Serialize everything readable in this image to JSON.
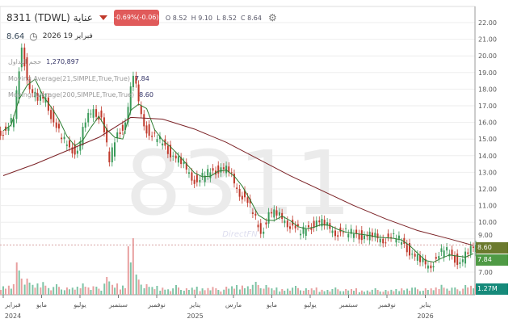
{
  "header": {
    "symbol": "8311 (TDWL) عناية",
    "change": "-0.69%(-0.06)",
    "ohlc": {
      "o_label": "O",
      "o": "8.52",
      "h_label": "H",
      "h": "9.10",
      "l_label": "L",
      "l": "8.52",
      "c_label": "C",
      "c": "8.64"
    },
    "last": "8.64",
    "date": "فبراير 19 2026"
  },
  "indicators": {
    "volume_label": "حجم التداول",
    "volume": "1,270,897",
    "ma1_label": "Moving Average(21,SIMPLE,True,True)",
    "ma1": "7.84",
    "ma2_label": "Moving Average(200,SIMPLE,True,True)",
    "ma2": "8.60"
  },
  "watermark": "8311",
  "brand": "DirectFN",
  "axis_tags": {
    "ma2": "8.60",
    "ma1": "7.84",
    "volume": "1.27M"
  },
  "colors": {
    "up": "#3a9a5a",
    "down": "#c0392b",
    "ma1": "#2e7d32",
    "ma2": "#7b2226",
    "vol_up": "#7fc4a6",
    "vol_down": "#e8a0a0"
  },
  "chart_data": {
    "type": "candlestick",
    "ylim": [
      6.5,
      22.5
    ],
    "yticks": [
      "22.00",
      "21.00",
      "20.00",
      "19.00",
      "18.00",
      "17.00",
      "16.00",
      "15.00",
      "14.00",
      "13.00",
      "12.00",
      "11.00",
      "10.00",
      "9.00",
      "7.00"
    ],
    "xticks": [
      [
        "فبراير",
        "2024"
      ],
      [
        "مايو",
        ""
      ],
      [
        "يوليو",
        ""
      ],
      [
        "سبتمبر",
        ""
      ],
      [
        "نوفمبر",
        ""
      ],
      [
        "يناير",
        "2025"
      ],
      [
        "مارس",
        ""
      ],
      [
        "مايو",
        ""
      ],
      [
        "يوليو",
        ""
      ],
      [
        "سبتمبر",
        ""
      ],
      [
        "نوفمبر",
        ""
      ],
      [
        "يناير",
        "2026"
      ]
    ],
    "close": [
      15.5,
      16.2,
      20.5,
      18,
      17.3,
      17.5,
      16,
      15,
      14.5,
      14.3,
      16,
      16.8,
      16.3,
      13.6,
      15.4,
      16,
      18.8,
      16.5,
      15.2,
      15,
      14.6,
      14,
      13.5,
      13,
      12.4,
      12.8,
      13.1,
      13.3,
      13,
      12,
      11.5,
      10.5,
      9.3,
      10.6,
      10.4,
      10.1,
      9.8,
      9.3,
      9.7,
      10.1,
      9.8,
      9.5,
      9.4,
      9.3,
      9.3,
      9.2,
      9.1,
      9.0,
      9.1,
      9.0,
      8.7,
      8.1,
      7.6,
      7.4,
      7.8,
      8.3,
      8.0,
      7.6,
      8.1,
      8.64
    ],
    "ma200_points": [
      [
        0,
        12.8
      ],
      [
        4,
        13.5
      ],
      [
        8,
        14.3
      ],
      [
        12,
        15.1
      ],
      [
        16,
        16.3
      ],
      [
        20,
        16.2
      ],
      [
        24,
        15.6
      ],
      [
        28,
        14.8
      ],
      [
        32,
        13.8
      ],
      [
        36,
        12.8
      ],
      [
        40,
        11.9
      ],
      [
        44,
        11
      ],
      [
        48,
        10.2
      ],
      [
        52,
        9.5
      ],
      [
        56,
        9.0
      ],
      [
        59,
        8.6
      ]
    ],
    "volume_m": [
      1.2,
      1.5,
      4,
      2,
      1.4,
      1.8,
      1.1,
      1.3,
      0.9,
      1.0,
      1.6,
      1.2,
      1.0,
      2.2,
      1.4,
      1.3,
      8,
      2.5,
      1.3,
      1.1,
      1.0,
      0.9,
      1.2,
      0.8,
      1.0,
      0.9,
      1.1,
      0.8,
      1.0,
      1.2,
      1.3,
      1.4,
      1.6,
      1.2,
      0.9,
      0.8,
      1.0,
      1.1,
      0.8,
      0.9,
      0.7,
      0.8,
      0.9,
      0.7,
      0.8,
      0.6,
      0.7,
      0.8,
      0.6,
      0.7,
      0.9,
      1.0,
      0.9,
      0.8,
      0.9,
      1.4,
      1.0,
      0.9,
      1.2,
      1.27
    ]
  }
}
